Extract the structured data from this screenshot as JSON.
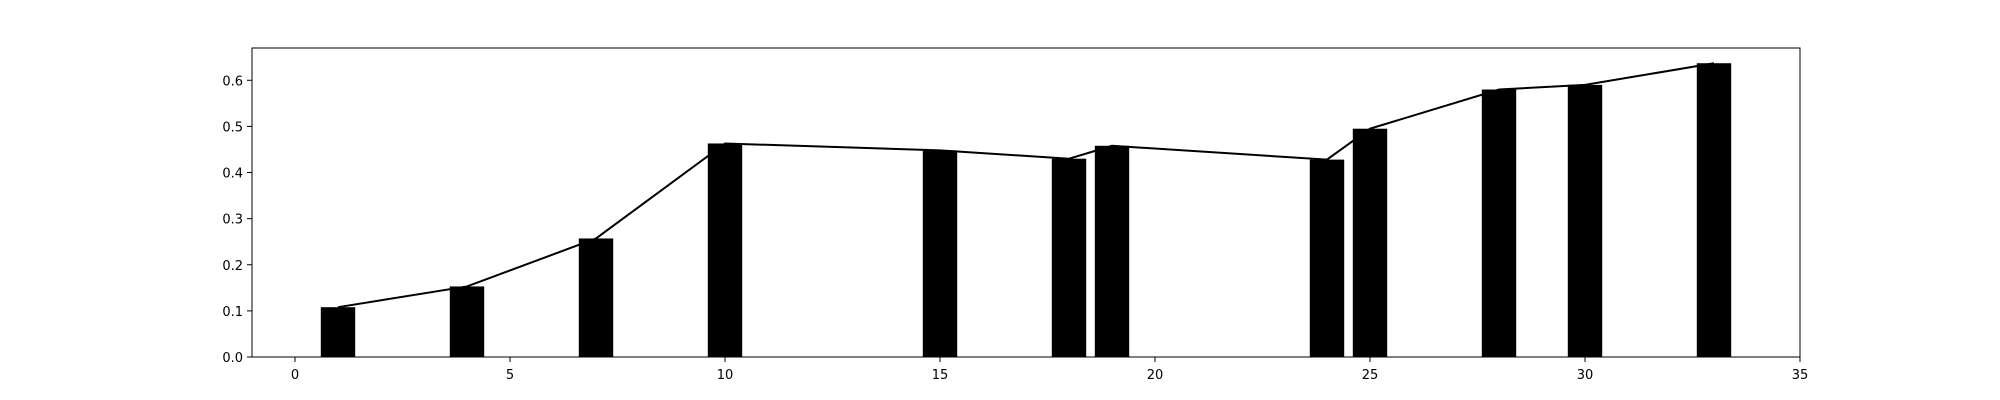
{
  "chart_data": {
    "type": "bar",
    "title": "",
    "xlabel": "",
    "ylabel": "",
    "xlim": [
      -1,
      35
    ],
    "ylim": [
      0,
      0.67
    ],
    "x_ticks": [
      0,
      5,
      10,
      15,
      20,
      25,
      30,
      35
    ],
    "y_ticks": [
      0.0,
      0.1,
      0.2,
      0.3,
      0.4,
      0.5,
      0.6
    ],
    "x_tick_labels": [
      "0",
      "5",
      "10",
      "15",
      "20",
      "25",
      "30",
      "35"
    ],
    "y_tick_labels": [
      "0.0",
      "0.1",
      "0.2",
      "0.3",
      "0.4",
      "0.5",
      "0.6"
    ],
    "bar_width": 0.8,
    "grid": false,
    "bar_color": "#000000",
    "line_color": "#000000",
    "series": [
      {
        "kind": "bar",
        "x": [
          1,
          4,
          7,
          10,
          15,
          18,
          19,
          24,
          25,
          28,
          30,
          33
        ],
        "values": [
          0.108,
          0.153,
          0.257,
          0.463,
          0.448,
          0.43,
          0.458,
          0.428,
          0.495,
          0.58,
          0.59,
          0.637
        ]
      },
      {
        "kind": "line",
        "x": [
          1,
          4,
          7,
          10,
          15,
          18,
          19,
          24,
          25,
          28,
          30,
          33
        ],
        "values": [
          0.108,
          0.153,
          0.257,
          0.463,
          0.448,
          0.43,
          0.458,
          0.428,
          0.495,
          0.58,
          0.59,
          0.637
        ]
      }
    ]
  }
}
